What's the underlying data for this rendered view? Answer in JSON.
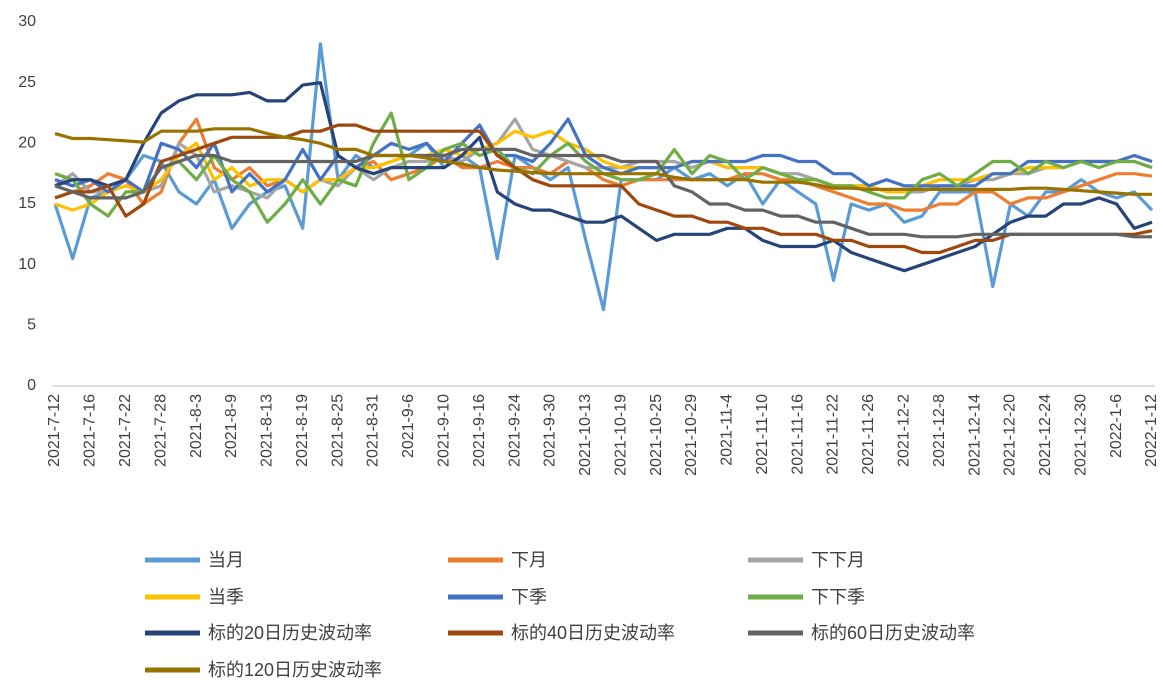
{
  "chart_data": {
    "type": "line",
    "categories": [
      "2021-7-12",
      null,
      "2021-7-16",
      null,
      "2021-7-22",
      null,
      "2021-7-28",
      null,
      "2021-8-3",
      null,
      "2021-8-9",
      null,
      "2021-8-13",
      null,
      "2021-8-19",
      null,
      "2021-8-25",
      null,
      "2021-8-31",
      null,
      "2021-9-6",
      null,
      "2021-9-10",
      null,
      "2021-9-16",
      null,
      "2021-9-24",
      null,
      "2021-9-30",
      null,
      "2021-10-13",
      null,
      "2021-10-19",
      null,
      "2021-10-25",
      null,
      "2021-10-29",
      null,
      "2021-11-4",
      null,
      "2021-11-10",
      null,
      "2021-11-16",
      null,
      "2021-11-22",
      null,
      "2021-11-26",
      null,
      "2021-12-2",
      null,
      "2021-12-8",
      null,
      "2021-12-14",
      null,
      "2021-12-20",
      null,
      "2021-12-24",
      null,
      "2021-12-30",
      null,
      "2022-1-6",
      null,
      "2022-1-12"
    ],
    "series": [
      {
        "name": "当月",
        "color": "#5b9bd5",
        "values": [
          15,
          10.5,
          15.5,
          16,
          17,
          19,
          18.5,
          16,
          15,
          17,
          13,
          15,
          16,
          16.5,
          13,
          28.2,
          17,
          19,
          18,
          18.5,
          19,
          20,
          18,
          19,
          18,
          10.5,
          19,
          18,
          17,
          18,
          12,
          6.3,
          17,
          17,
          17,
          18,
          17,
          17.5,
          16.5,
          17.5,
          15,
          17,
          16,
          15,
          8.7,
          15,
          14.5,
          15,
          13.5,
          14,
          16,
          16,
          16,
          8.2,
          15,
          14,
          16,
          16,
          17,
          16,
          15.5,
          16,
          14.5
        ]
      },
      {
        "name": "下月",
        "color": "#ed7d31",
        "values": [
          15.5,
          16,
          16.5,
          17.5,
          17,
          15,
          16,
          20,
          22,
          18,
          17,
          18,
          16.5,
          17,
          16,
          17,
          17,
          18,
          18.5,
          17,
          17.5,
          18,
          19,
          18,
          18,
          18.5,
          18,
          18,
          17.5,
          18.5,
          18,
          17,
          16.5,
          17,
          17,
          17,
          17,
          17,
          17,
          17.5,
          17.5,
          17,
          17,
          16.5,
          16,
          15.5,
          15,
          15,
          14.5,
          14.5,
          15,
          15,
          16,
          16,
          15,
          15.5,
          15.5,
          16,
          16.5,
          17,
          17.5,
          17.5,
          17.3
        ]
      },
      {
        "name": "下下月",
        "color": "#a5a5a5",
        "values": [
          16.5,
          17.5,
          16,
          16,
          17,
          16,
          16.5,
          20,
          19,
          16,
          16.5,
          16,
          15.5,
          17,
          16,
          17,
          16.5,
          18,
          17,
          18,
          18.5,
          18.5,
          19,
          18.5,
          19.5,
          20,
          22,
          19.5,
          19,
          18.5,
          18,
          18,
          18,
          18.5,
          18.5,
          18.5,
          18,
          18.5,
          18,
          18,
          18,
          17.5,
          17.5,
          17,
          16.5,
          16.5,
          16.5,
          16,
          16,
          16,
          16.5,
          16.5,
          17,
          17,
          17.5,
          17.5,
          18,
          18,
          18.5,
          18.5,
          18.5,
          18.5,
          18
        ]
      },
      {
        "name": "当季",
        "color": "#ffc000",
        "values": [
          15,
          14.5,
          15,
          16,
          16.5,
          16,
          17,
          19,
          20,
          17,
          18,
          16.5,
          17,
          17,
          16,
          17,
          17,
          18,
          18,
          18.5,
          19,
          19,
          19.5,
          19,
          19.5,
          20,
          21,
          20.5,
          21,
          20,
          19.5,
          18.5,
          18,
          18,
          18,
          18,
          18.5,
          18.5,
          18,
          18,
          18,
          17.5,
          17,
          17,
          16.5,
          16.5,
          16.5,
          16,
          16,
          16.5,
          17,
          17,
          17,
          17.5,
          17.5,
          18,
          18,
          18,
          18.5,
          18.5,
          18.5,
          19,
          18.5
        ]
      },
      {
        "name": "下季",
        "color": "#4472c4",
        "values": [
          17,
          16.5,
          17,
          16,
          17,
          16,
          20,
          19.5,
          18,
          20,
          16,
          17.5,
          16,
          17,
          19.5,
          17,
          19,
          18,
          19,
          20,
          19.5,
          20,
          18.5,
          20,
          21.5,
          19,
          19,
          18.5,
          20,
          22,
          19,
          18,
          17.5,
          18,
          18,
          18,
          18.5,
          18.5,
          18.5,
          18.5,
          19,
          19,
          18.5,
          18.5,
          17.5,
          17.5,
          16.5,
          17,
          16.5,
          16.5,
          16.5,
          16.5,
          16.5,
          17.5,
          17.5,
          18.5,
          18.5,
          18.5,
          18.5,
          18.5,
          18.5,
          19,
          18.5
        ]
      },
      {
        "name": "下下季",
        "color": "#70ad47",
        "values": [
          17.5,
          17,
          15,
          14,
          16,
          16,
          18,
          18.5,
          17,
          19,
          17,
          16,
          13.5,
          15,
          17,
          15,
          17,
          16.5,
          20,
          22.5,
          17,
          18,
          19.5,
          20,
          19,
          19.5,
          18,
          17.5,
          19,
          20,
          18.5,
          17.5,
          17,
          17,
          17.5,
          19.5,
          17.5,
          19,
          18.5,
          17,
          18,
          17.5,
          17,
          17,
          16.5,
          16.5,
          16,
          15.5,
          15.5,
          17,
          17.5,
          16.5,
          17.5,
          18.5,
          18.5,
          17.5,
          18.5,
          18,
          18.5,
          18,
          18.5,
          18.5,
          18
        ]
      },
      {
        "name": "标的20日历史波动率",
        "color": "#264478",
        "values": [
          16.5,
          17,
          17,
          16.5,
          17,
          20,
          22.5,
          23.5,
          24,
          24,
          24,
          24.2,
          23.5,
          23.5,
          24.8,
          25,
          19,
          18,
          17.5,
          18,
          18,
          18,
          18,
          19,
          20.5,
          16,
          15,
          14.5,
          14.5,
          14,
          13.5,
          13.5,
          14,
          13,
          12,
          12.5,
          12.5,
          12.5,
          13,
          13,
          12,
          11.5,
          11.5,
          11.5,
          12,
          11,
          10.5,
          10,
          9.5,
          10,
          10.5,
          11,
          11.5,
          12.5,
          13.5,
          14,
          14,
          15,
          15,
          15.5,
          15,
          13,
          13.5
        ]
      },
      {
        "name": "标的40日历史波动率",
        "color": "#9e480e",
        "values": [
          15.5,
          16,
          16,
          16.5,
          14,
          15,
          18.5,
          19,
          19.5,
          20,
          20.5,
          20.5,
          20.5,
          20.5,
          21,
          21,
          21.5,
          21.5,
          21,
          21,
          21,
          21,
          21,
          21,
          21,
          19,
          18,
          17,
          16.5,
          16.5,
          16.5,
          16.5,
          16.5,
          15,
          14.5,
          14,
          14,
          13.5,
          13.5,
          13,
          13,
          12.5,
          12.5,
          12.5,
          12,
          12,
          11.5,
          11.5,
          11.5,
          11,
          11,
          11.5,
          12,
          12,
          12.5,
          12.5,
          12.5,
          12.5,
          12.5,
          12.5,
          12.5,
          12.5,
          12.8
        ]
      },
      {
        "name": "标的60日历史波动率",
        "color": "#636363",
        "values": [
          16.5,
          16,
          15.5,
          15.5,
          15.5,
          16,
          18,
          18.5,
          19,
          19,
          18.5,
          18.5,
          18.5,
          18.5,
          18.5,
          18.5,
          18.5,
          18.5,
          19,
          19,
          19,
          19,
          19,
          19.5,
          19.5,
          19.5,
          19.5,
          19,
          19,
          19,
          19,
          19,
          18.5,
          18.5,
          18.5,
          16.5,
          16,
          15,
          15,
          14.5,
          14.5,
          14,
          14,
          13.5,
          13.5,
          13,
          12.5,
          12.5,
          12.5,
          12.3,
          12.3,
          12.3,
          12.5,
          12.5,
          12.5,
          12.5,
          12.5,
          12.5,
          12.5,
          12.5,
          12.5,
          12.3,
          12.3
        ]
      },
      {
        "name": "标的120日历史波动率",
        "color": "#997300",
        "values": [
          20.8,
          20.4,
          20.4,
          20.3,
          20.2,
          20.1,
          21,
          21,
          21,
          21.2,
          21.2,
          21.2,
          20.8,
          20.5,
          20.3,
          20,
          19.5,
          19.5,
          19,
          19,
          19,
          18.8,
          18.5,
          18.3,
          18,
          17.8,
          17.7,
          17.6,
          17.5,
          17.5,
          17.5,
          17.5,
          17.5,
          17.5,
          17.5,
          17.2,
          17,
          17,
          17,
          17,
          16.8,
          16.8,
          16.8,
          16.6,
          16.3,
          16.3,
          16.2,
          16.2,
          16.2,
          16.2,
          16.2,
          16.2,
          16.2,
          16.2,
          16.2,
          16.3,
          16.3,
          16.2,
          16.1,
          16,
          15.9,
          15.8,
          15.8
        ]
      }
    ],
    "ylim": [
      0,
      30
    ],
    "yticks": [
      0,
      5,
      10,
      15,
      20,
      25,
      30
    ],
    "grid": false
  }
}
